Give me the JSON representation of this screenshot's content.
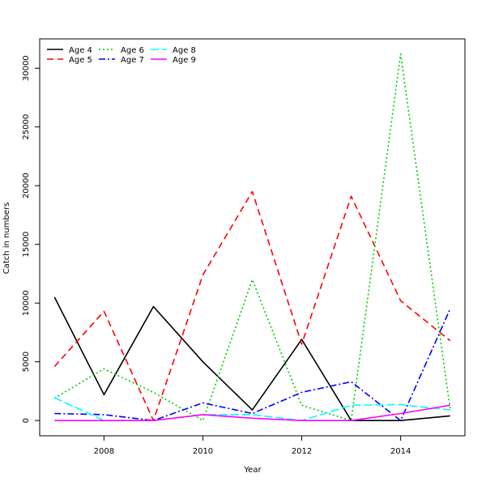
{
  "chart_data": {
    "type": "line",
    "xlabel": "Year",
    "ylabel": "Catch in numbers",
    "xlim": [
      2006.7,
      2015.3
    ],
    "ylim": [
      -1300,
      32500
    ],
    "x_ticks": [
      "2008",
      "2010",
      "2012",
      "2014"
    ],
    "y_ticks": [
      "0",
      "5000",
      "10000",
      "15000",
      "20000",
      "25000",
      "30000"
    ],
    "grid": false,
    "legend_position": "top-left",
    "x": [
      2007,
      2008,
      2009,
      2010,
      2011,
      2012,
      2013,
      2014,
      2015
    ],
    "series": [
      {
        "name": "Age 4",
        "color": "#000000",
        "dash": "",
        "values": [
          10500,
          2200,
          9700,
          5000,
          900,
          6900,
          0,
          0,
          400
        ]
      },
      {
        "name": "Age 5",
        "color": "#ff0000",
        "dash": "8 5",
        "values": [
          4600,
          9300,
          0,
          12400,
          19500,
          6500,
          19100,
          10200,
          6800
        ]
      },
      {
        "name": "Age 6",
        "color": "#00cd00",
        "dash": "2 3",
        "values": [
          1900,
          4400,
          2400,
          0,
          12000,
          1300,
          0,
          31200,
          1000
        ]
      },
      {
        "name": "Age 7",
        "color": "#0000ff",
        "dash": "8 3 2 3",
        "values": [
          600,
          500,
          0,
          1500,
          600,
          2400,
          3300,
          0,
          9500
        ]
      },
      {
        "name": "Age 8",
        "color": "#00ffff",
        "dash": "10 4",
        "values": [
          1950,
          0,
          0,
          500,
          500,
          0,
          1300,
          1350,
          900
        ]
      },
      {
        "name": "Age 9",
        "color": "#ff00ff",
        "dash": "",
        "values": [
          0,
          0,
          0,
          500,
          200,
          0,
          0,
          600,
          1300
        ]
      }
    ]
  }
}
